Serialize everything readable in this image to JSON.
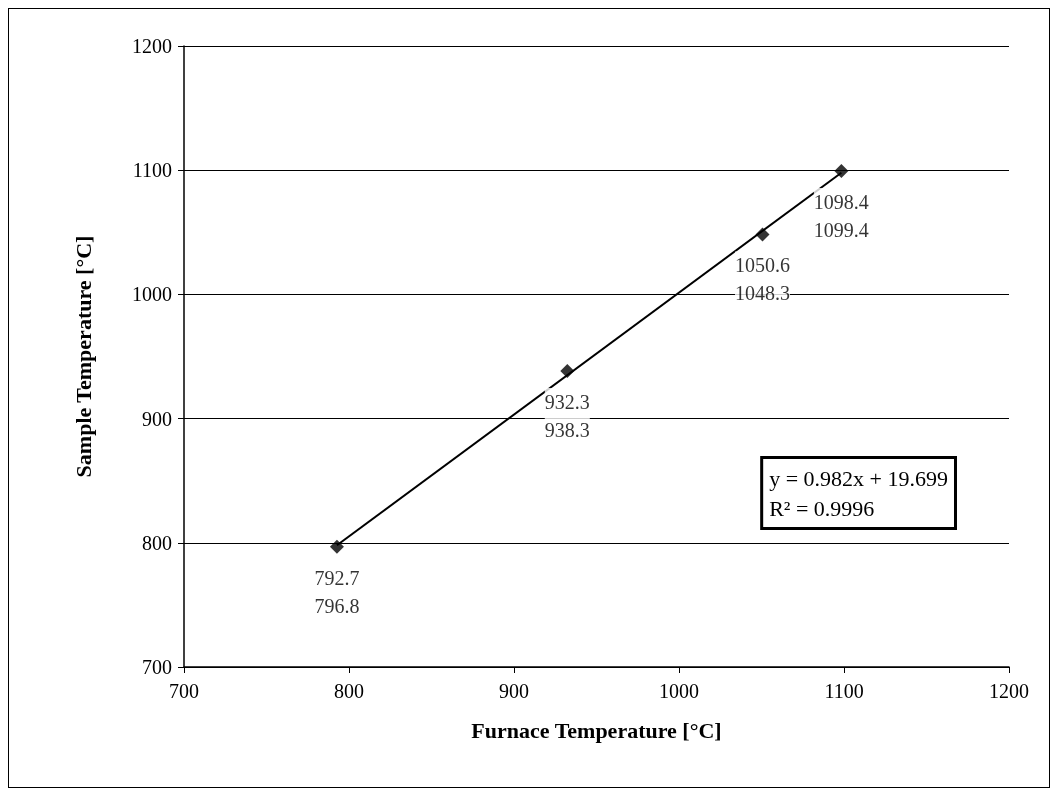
{
  "chart_data": {
    "type": "scatter",
    "xlabel": "Furnace Temperature [°C]",
    "ylabel": "Sample Temperature [°C]",
    "xlim": [
      700,
      1200
    ],
    "xticks": [
      700,
      800,
      900,
      1000,
      1100,
      1200
    ],
    "ylim": [
      700,
      1200
    ],
    "yticks": [
      700,
      800,
      900,
      1000,
      1100,
      1200
    ],
    "grid": "y",
    "marker": "diamond",
    "annotations": [
      "y = 0.982x + 19.699\nR² = 0.9996"
    ],
    "series": [
      {
        "color": "#000000",
        "x": [
          792.7,
          932.3,
          1050.6,
          1098.4
        ],
        "values": [
          796.8,
          938.3,
          1048.3,
          1099.4
        ],
        "value_labels": [
          "792.7\n796.8",
          "932.3\n938.3",
          "1050.6\n1048.3",
          "1098.4\n1099.4"
        ]
      },
      {
        "type": "line",
        "color": "#000000",
        "marker": "none",
        "line_style": "solid",
        "x": [
          792.7,
          1098.4
        ],
        "values": [
          798,
          1098
        ]
      }
    ]
  }
}
